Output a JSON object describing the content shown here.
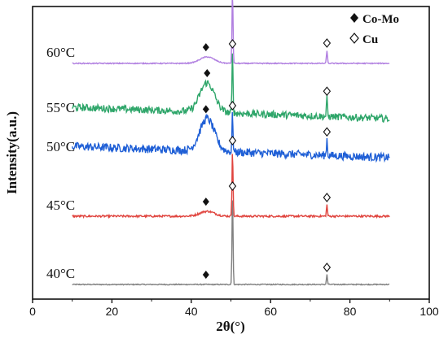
{
  "chart_data": {
    "type": "line",
    "xlabel": "2θ(°)",
    "ylabel": "Intensity(a.u.)",
    "xlim": [
      0,
      100
    ],
    "x_ticks": [
      "0",
      "20",
      "40",
      "60",
      "80",
      "100"
    ],
    "y_ticks_shown": false,
    "grid": false,
    "legend_position": "top-right",
    "legend": [
      {
        "marker": "filled-diamond",
        "label": "Co-Mo"
      },
      {
        "marker": "open-diamond",
        "label": "Cu"
      }
    ],
    "series": [
      {
        "name": "40°C",
        "color": "#808080",
        "offset": 0.0,
        "noise": 0.03,
        "broad_peak_height": 0.0,
        "cu_peaks": [
          {
            "x": 50.4,
            "h": 2.8
          },
          {
            "x": 74.2,
            "h": 0.3
          }
        ],
        "comomarks": [
          43.7
        ],
        "cumarks": [
          50.4,
          74.2
        ]
      },
      {
        "name": "45°C",
        "color": "#e0443e",
        "offset": 2.1,
        "noise": 0.06,
        "broad_peak_height": 0.15,
        "cu_peaks": [
          {
            "x": 50.4,
            "h": 2.1
          },
          {
            "x": 74.2,
            "h": 0.35
          }
        ],
        "comomarks": [
          43.7
        ],
        "cumarks": [
          50.4,
          74.2
        ]
      },
      {
        "name": "50°C",
        "color": "#1f5fd6",
        "offset": 3.9,
        "noise": 0.25,
        "broad_peak_height": 1.0,
        "cu_peaks": [
          {
            "x": 50.4,
            "h": 1.2
          },
          {
            "x": 74.2,
            "h": 0.5
          }
        ],
        "comomarks": [
          43.7
        ],
        "cumarks": [
          50.4,
          74.2
        ]
      },
      {
        "name": "55°C",
        "color": "#2fa66a",
        "offset": 5.1,
        "noise": 0.22,
        "broad_peak_height": 0.9,
        "cu_peaks": [
          {
            "x": 50.4,
            "h": 1.9
          },
          {
            "x": 74.2,
            "h": 0.55
          }
        ],
        "comomarks": [
          44.0
        ],
        "cumarks": [
          50.4,
          74.2
        ]
      },
      {
        "name": "60°C",
        "color": "#b07ee0",
        "offset": 6.8,
        "noise": 0.03,
        "broad_peak_height": 0.2,
        "cu_peaks": [
          {
            "x": 50.4,
            "h": 2.3
          },
          {
            "x": 74.2,
            "h": 0.4
          }
        ],
        "comomarks": [
          43.7
        ],
        "cumarks": [
          50.4,
          74.2
        ]
      }
    ]
  }
}
